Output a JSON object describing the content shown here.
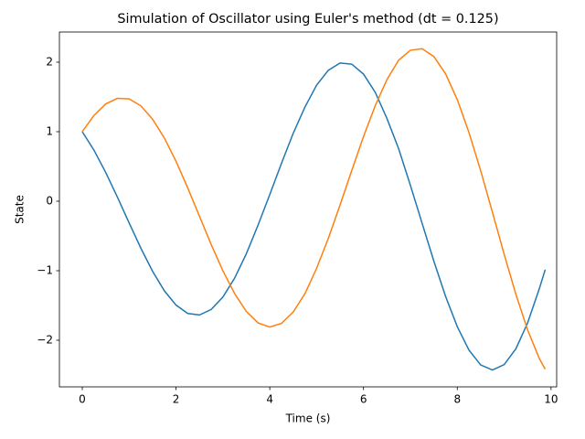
{
  "chart_data": {
    "type": "line",
    "title": "Simulation of Oscillator using Euler's method (dt = 0.125)",
    "x_label": "Time (s)",
    "y_label": "State",
    "x": [
      0,
      0.25,
      0.5,
      0.75,
      1,
      1.25,
      1.5,
      1.75,
      2,
      2.25,
      2.5,
      2.75,
      3,
      3.25,
      3.5,
      3.75,
      4,
      4.25,
      4.5,
      4.75,
      5,
      5.25,
      5.5,
      5.75,
      6,
      6.25,
      6.5,
      6.75,
      7,
      7.25,
      7.5,
      7.75,
      8,
      8.25,
      8.5,
      8.75,
      9,
      9.25,
      9.5,
      9.75,
      9.875
    ],
    "series": [
      {
        "color": "#1f77b4",
        "values": [
          1,
          0.734,
          0.414,
          0.058,
          -0.313,
          -0.676,
          -1.008,
          -1.288,
          -1.494,
          -1.615,
          -1.637,
          -1.558,
          -1.378,
          -1.107,
          -0.756,
          -0.344,
          0.095,
          0.546,
          0.977,
          1.354,
          1.67,
          1.884,
          1.988,
          1.971,
          1.828,
          1.566,
          1.19,
          0.753,
          0.228,
          -0.318,
          -0.862,
          -1.368,
          -1.805,
          -2.143,
          -2.356,
          -2.428,
          -2.351,
          -2.123,
          -1.752,
          -1.259,
          -0.985
        ]
      },
      {
        "color": "#ff7f0e",
        "values": [
          1,
          1.234,
          1.399,
          1.48,
          1.472,
          1.371,
          1.18,
          0.91,
          0.575,
          0.191,
          -0.216,
          -0.622,
          -1.001,
          -1.329,
          -1.586,
          -1.751,
          -1.81,
          -1.758,
          -1.594,
          -1.331,
          -0.964,
          -0.533,
          -0.052,
          0.444,
          0.931,
          1.375,
          1.75,
          2.029,
          2.172,
          2.194,
          2.081,
          1.833,
          1.462,
          0.986,
          0.437,
          -0.159,
          -0.764,
          -1.339,
          -1.852,
          -2.263,
          -2.416
        ]
      }
    ],
    "xlim": [
      -0.4875,
      10.12
    ],
    "ylim": [
      -2.671,
      2.434
    ],
    "xticks": [
      0,
      2,
      4,
      6,
      8,
      10
    ],
    "yticks": [
      {
        "value": -2,
        "label": "−2"
      },
      {
        "value": -1,
        "label": "−1"
      },
      0,
      1,
      2
    ]
  }
}
